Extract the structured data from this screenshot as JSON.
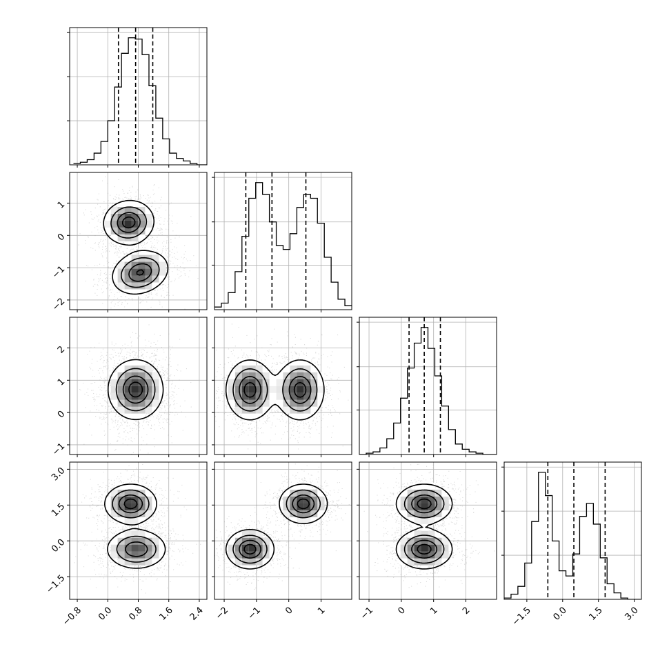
{
  "chart_data": {
    "type": "corner",
    "title": "",
    "grid": true,
    "n_params": 4,
    "axis_labels": [
      "",
      "",
      "",
      ""
    ],
    "ranges": [
      [
        -1.0,
        2.6
      ],
      [
        -2.3,
        1.95
      ],
      [
        -1.3,
        2.95
      ],
      [
        -2.45,
        3.3
      ]
    ],
    "ticks": [
      {
        "values": [
          -0.8,
          0.0,
          0.8,
          1.6,
          2.4
        ],
        "labels": [
          "−0.8",
          "0.0",
          "0.8",
          "1.6",
          "2.4"
        ]
      },
      {
        "values": [
          -2,
          -1,
          0,
          1
        ],
        "labels": [
          "−2",
          "−1",
          "0",
          "1"
        ]
      },
      {
        "values": [
          -1,
          0,
          1,
          2
        ],
        "labels": [
          "−1",
          "0",
          "1",
          "2"
        ]
      },
      {
        "values": [
          -1.5,
          0.0,
          1.5,
          3.0
        ],
        "labels": [
          "−1.5",
          "0.0",
          "1.5",
          "3.0"
        ]
      }
    ],
    "quantiles": [
      [
        0.28,
        0.73,
        1.18
      ],
      [
        -1.33,
        -0.52,
        0.53
      ],
      [
        0.24,
        0.71,
        1.21
      ],
      [
        -0.62,
        0.47,
        1.78
      ]
    ],
    "histograms": [
      {
        "bin_start": -0.9,
        "bin_width": 0.18,
        "counts": [
          1,
          2,
          4,
          9,
          18,
          34,
          60,
          86,
          98,
          97,
          85,
          61,
          36,
          20,
          9,
          5,
          3,
          1,
          0,
          0
        ]
      },
      {
        "bin_start": -2.3,
        "bin_width": 0.2125,
        "counts": [
          2,
          5,
          13,
          29,
          56,
          85,
          97,
          88,
          67,
          49,
          46,
          58,
          78,
          88,
          85,
          66,
          40,
          21,
          8,
          3
        ]
      },
      {
        "bin_start": -1.3,
        "bin_width": 0.2125,
        "counts": [
          0,
          1,
          2,
          5,
          12,
          24,
          43,
          66,
          85,
          97,
          81,
          60,
          37,
          19,
          8,
          4,
          2,
          1,
          0,
          0
        ]
      },
      {
        "bin_start": -2.45,
        "bin_width": 0.2875,
        "counts": [
          1,
          4,
          10,
          28,
          60,
          98,
          80,
          45,
          22,
          18,
          35,
          64,
          74,
          58,
          32,
          12,
          5,
          1,
          0,
          0
        ]
      }
    ],
    "pair_densities": [
      {
        "row": 1,
        "col": 0,
        "components": [
          {
            "mean": [
              0.55,
              0.4
            ],
            "sd": [
              0.32,
              0.33
            ],
            "rho": 0.05,
            "weight": 0.5
          },
          {
            "mean": [
              0.85,
              -1.15
            ],
            "sd": [
              0.36,
              0.33
            ],
            "rho": 0.2,
            "weight": 0.5
          }
        ]
      },
      {
        "row": 2,
        "col": 0,
        "components": [
          {
            "mean": [
              0.73,
              0.71
            ],
            "sd": [
              0.35,
              0.45
            ],
            "rho": 0.0,
            "weight": 1.0
          }
        ]
      },
      {
        "row": 2,
        "col": 1,
        "components": [
          {
            "mean": [
              -1.2,
              0.7
            ],
            "sd": [
              0.36,
              0.45
            ],
            "rho": 0.0,
            "weight": 0.5
          },
          {
            "mean": [
              0.35,
              0.7
            ],
            "sd": [
              0.36,
              0.45
            ],
            "rho": 0.0,
            "weight": 0.5
          }
        ]
      },
      {
        "row": 3,
        "col": 0,
        "components": [
          {
            "mean": [
              0.6,
              1.55
            ],
            "sd": [
              0.33,
              0.4
            ],
            "rho": 0.0,
            "weight": 0.5
          },
          {
            "mean": [
              0.75,
              -0.35
            ],
            "sd": [
              0.38,
              0.4
            ],
            "rho": 0.0,
            "weight": 0.5
          }
        ]
      },
      {
        "row": 3,
        "col": 1,
        "components": [
          {
            "mean": [
              -1.2,
              -0.35
            ],
            "sd": [
              0.36,
              0.4
            ],
            "rho": 0.0,
            "weight": 0.5
          },
          {
            "mean": [
              0.45,
              1.55
            ],
            "sd": [
              0.36,
              0.4
            ],
            "rho": 0.0,
            "weight": 0.5
          }
        ]
      },
      {
        "row": 3,
        "col": 2,
        "components": [
          {
            "mean": [
              0.71,
              1.55
            ],
            "sd": [
              0.42,
              0.4
            ],
            "rho": 0.0,
            "weight": 0.5
          },
          {
            "mean": [
              0.71,
              -0.35
            ],
            "sd": [
              0.42,
              0.4
            ],
            "rho": 0.0,
            "weight": 0.5
          }
        ]
      }
    ],
    "contour_levels": [
      0.35,
      0.65,
      0.88
    ],
    "colors": {
      "line": "#000000",
      "density": "#000000",
      "grid": "#b0b0b0",
      "points": "#999999"
    }
  }
}
